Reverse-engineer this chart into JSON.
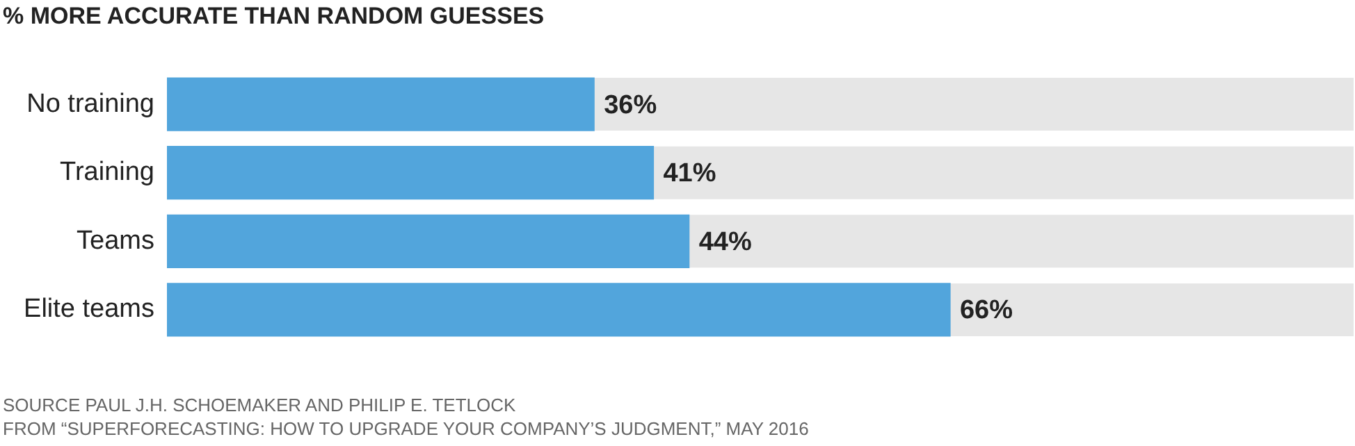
{
  "chart_data": {
    "type": "bar",
    "orientation": "horizontal",
    "title": "% MORE ACCURATE THAN RANDOM GUESSES",
    "categories": [
      "No training",
      "Training",
      "Teams",
      "Elite teams"
    ],
    "values": [
      36,
      41,
      44,
      66
    ],
    "color": "#52a5dc",
    "value_labels": [
      "36%",
      "41%",
      "44%",
      "66%"
    ],
    "xlim": [
      0,
      100
    ],
    "tick_labels": "y",
    "annotations": [
      "SOURCE PAUL J.H. SCHOEMAKER AND PHILIP E. TETLOCK",
      "FROM “SUPERFORECASTING: HOW TO UPGRADE YOUR COMPANY’S JUDGMENT,” MAY 2016"
    ]
  }
}
